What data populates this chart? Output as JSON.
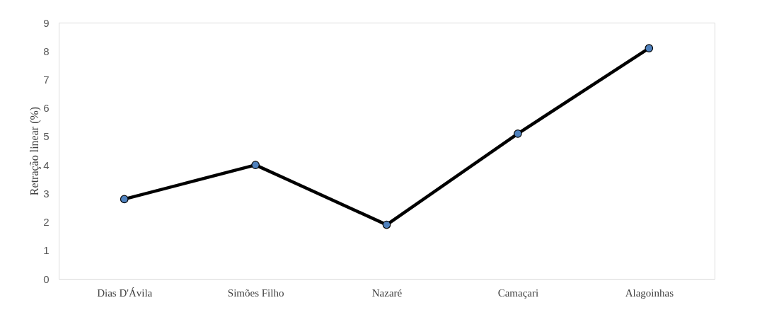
{
  "chart_data": {
    "type": "line",
    "ylabel": "Retração linear (%)",
    "categories": [
      "Dias D'Ávila",
      "Simões Filho",
      "Nazaré",
      "Camaçari",
      "Alagoinhas"
    ],
    "series": [
      {
        "color": "#4f81bd",
        "values": [
          2.8,
          4.0,
          1.9,
          5.1,
          8.1
        ]
      }
    ],
    "ylim": [
      0,
      9
    ],
    "yticks": [
      0,
      1,
      2,
      3,
      4,
      5,
      6,
      7,
      8,
      9
    ],
    "grid": false,
    "marker": "circle",
    "line_style": "solid"
  }
}
